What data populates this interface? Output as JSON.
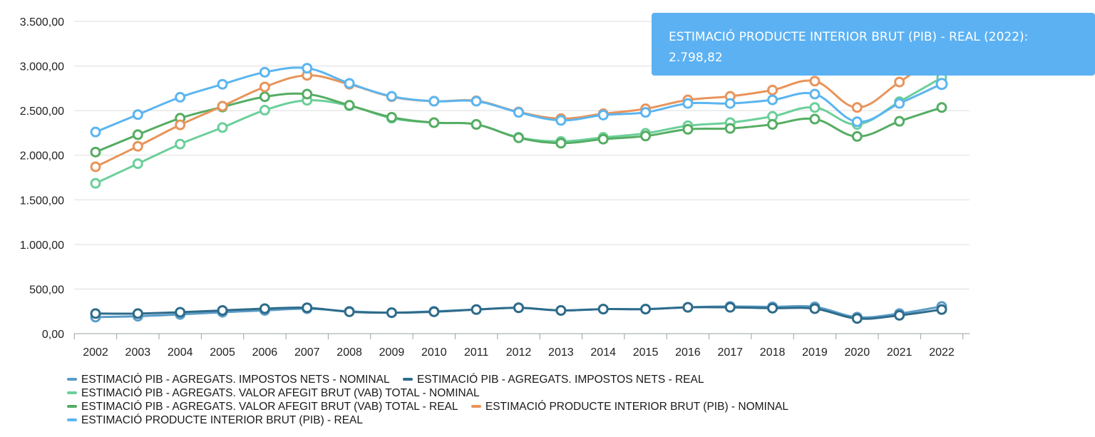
{
  "chart_data": {
    "type": "line",
    "title": "",
    "xlabel": "",
    "ylabel": "",
    "categories": [
      "2002",
      "2003",
      "2004",
      "2005",
      "2006",
      "2007",
      "2008",
      "2009",
      "2010",
      "2011",
      "2012",
      "2013",
      "2014",
      "2015",
      "2016",
      "2017",
      "2018",
      "2019",
      "2020",
      "2021",
      "2022"
    ],
    "ylim": [
      0,
      3500
    ],
    "y_ticks": [
      0,
      500,
      1000,
      1500,
      2000,
      2500,
      3000,
      3500
    ],
    "y_tick_labels": [
      "0,00",
      "500,00",
      "1.000,00",
      "1.500,00",
      "2.000,00",
      "2.500,00",
      "3.000,00",
      "3.500,00"
    ],
    "grid": true,
    "legend_position": "bottom-left",
    "series": [
      {
        "name": "ESTIMACIÓ PIB - AGREGATS. IMPOSTOS NETS - NOMINAL",
        "color": "#5a9cc7",
        "values": [
          185,
          195,
          215,
          240,
          260,
          280,
          250,
          235,
          250,
          270,
          290,
          260,
          275,
          275,
          295,
          305,
          300,
          300,
          185,
          225,
          305
        ]
      },
      {
        "name": "ESTIMACIÓ PIB - AGREGATS. IMPOSTOS NETS - REAL",
        "color": "#2e6b8a",
        "values": [
          225,
          225,
          240,
          260,
          280,
          290,
          245,
          235,
          245,
          270,
          290,
          260,
          275,
          275,
          295,
          295,
          285,
          280,
          170,
          205,
          270
        ]
      },
      {
        "name": "ESTIMACIÓ PIB - AGREGATS. VALOR AFEGIT BRUT (VAB) TOTAL - NOMINAL",
        "color": "#6ccf9a",
        "values": [
          1685,
          1905,
          2125,
          2310,
          2505,
          2615,
          2555,
          2415,
          2365,
          2345,
          2200,
          2155,
          2200,
          2245,
          2330,
          2365,
          2435,
          2535,
          2345,
          2600,
          2870
        ]
      },
      {
        "name": "ESTIMACIÓ PIB - AGREGATS. VALOR AFEGIT BRUT (VAB) TOTAL - REAL",
        "color": "#55ad63",
        "values": [
          2035,
          2230,
          2415,
          2540,
          2655,
          2685,
          2560,
          2425,
          2365,
          2345,
          2195,
          2135,
          2180,
          2215,
          2290,
          2300,
          2345,
          2405,
          2210,
          2380,
          2535
        ]
      },
      {
        "name": "ESTIMACIÓ PRODUCTE INTERIOR BRUT (PIB) - NOMINAL",
        "color": "#e8945a",
        "values": [
          1870,
          2100,
          2340,
          2550,
          2765,
          2895,
          2795,
          2655,
          2605,
          2610,
          2485,
          2410,
          2465,
          2520,
          2620,
          2660,
          2730,
          2830,
          2535,
          2820,
          3150
        ]
      },
      {
        "name": "ESTIMACIÓ PRODUCTE INTERIOR BRUT (PIB) - REAL",
        "color": "#5bb5f0",
        "values": [
          2260,
          2455,
          2650,
          2795,
          2930,
          2975,
          2805,
          2660,
          2605,
          2605,
          2480,
          2390,
          2450,
          2480,
          2580,
          2580,
          2620,
          2685,
          2375,
          2580,
          2798.82
        ]
      }
    ],
    "tooltip": {
      "line1": "ESTIMACIÓ PRODUCTE INTERIOR BRUT (PIB) - REAL (2022):",
      "line2": "2.798,82"
    }
  }
}
